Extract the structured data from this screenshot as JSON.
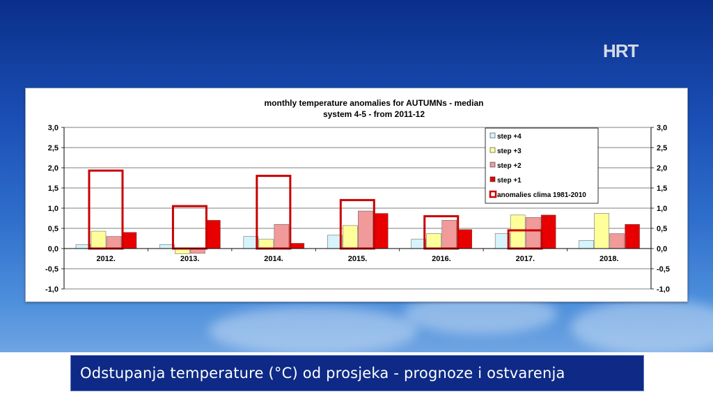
{
  "broadcaster": "HRT",
  "caption": "Odstupanja temperature (°C) od prosjeka - prognoze i ostvarenja",
  "colors": {
    "step4": "#d5f4fb",
    "step3": "#ffff9a",
    "step2": "#f09a9a",
    "step1": "#e80000",
    "anomaly": "#c80000",
    "caption_bg": "#0e2a86"
  },
  "chart_data": {
    "type": "bar",
    "title": "monthly temperature anomalies for AUTUMNs  - median",
    "subtitle": "system 4-5 - from 2011-12",
    "categories": [
      "2012.",
      "2013.",
      "2014.",
      "2015.",
      "2016.",
      "2017.",
      "2018."
    ],
    "series": [
      {
        "name": "step +4",
        "values": [
          0.1,
          0.1,
          0.3,
          0.33,
          0.23,
          0.37,
          0.2
        ]
      },
      {
        "name": "step +3",
        "values": [
          0.43,
          -0.13,
          0.23,
          0.57,
          0.37,
          0.83,
          0.87
        ]
      },
      {
        "name": "step +2",
        "values": [
          0.3,
          -0.12,
          0.6,
          0.93,
          0.7,
          0.77,
          0.37
        ]
      },
      {
        "name": "step +1",
        "values": [
          0.4,
          0.7,
          0.13,
          0.87,
          0.47,
          0.83,
          0.6
        ]
      }
    ],
    "anomalies": {
      "name": "anomalies clima 1981-2010",
      "values": [
        1.93,
        1.05,
        1.8,
        1.2,
        0.8,
        0.45,
        null
      ]
    },
    "ylim": [
      -1.0,
      3.0
    ],
    "yticks": [
      "3,0",
      "2,5",
      "2,0",
      "1,5",
      "1,0",
      "0,5",
      "0,0",
      "-0,5",
      "-1,0"
    ],
    "ytick_values": [
      3.0,
      2.5,
      2.0,
      1.5,
      1.0,
      0.5,
      0.0,
      -0.5,
      -1.0
    ],
    "legend_position": "top-right",
    "grid": true
  }
}
